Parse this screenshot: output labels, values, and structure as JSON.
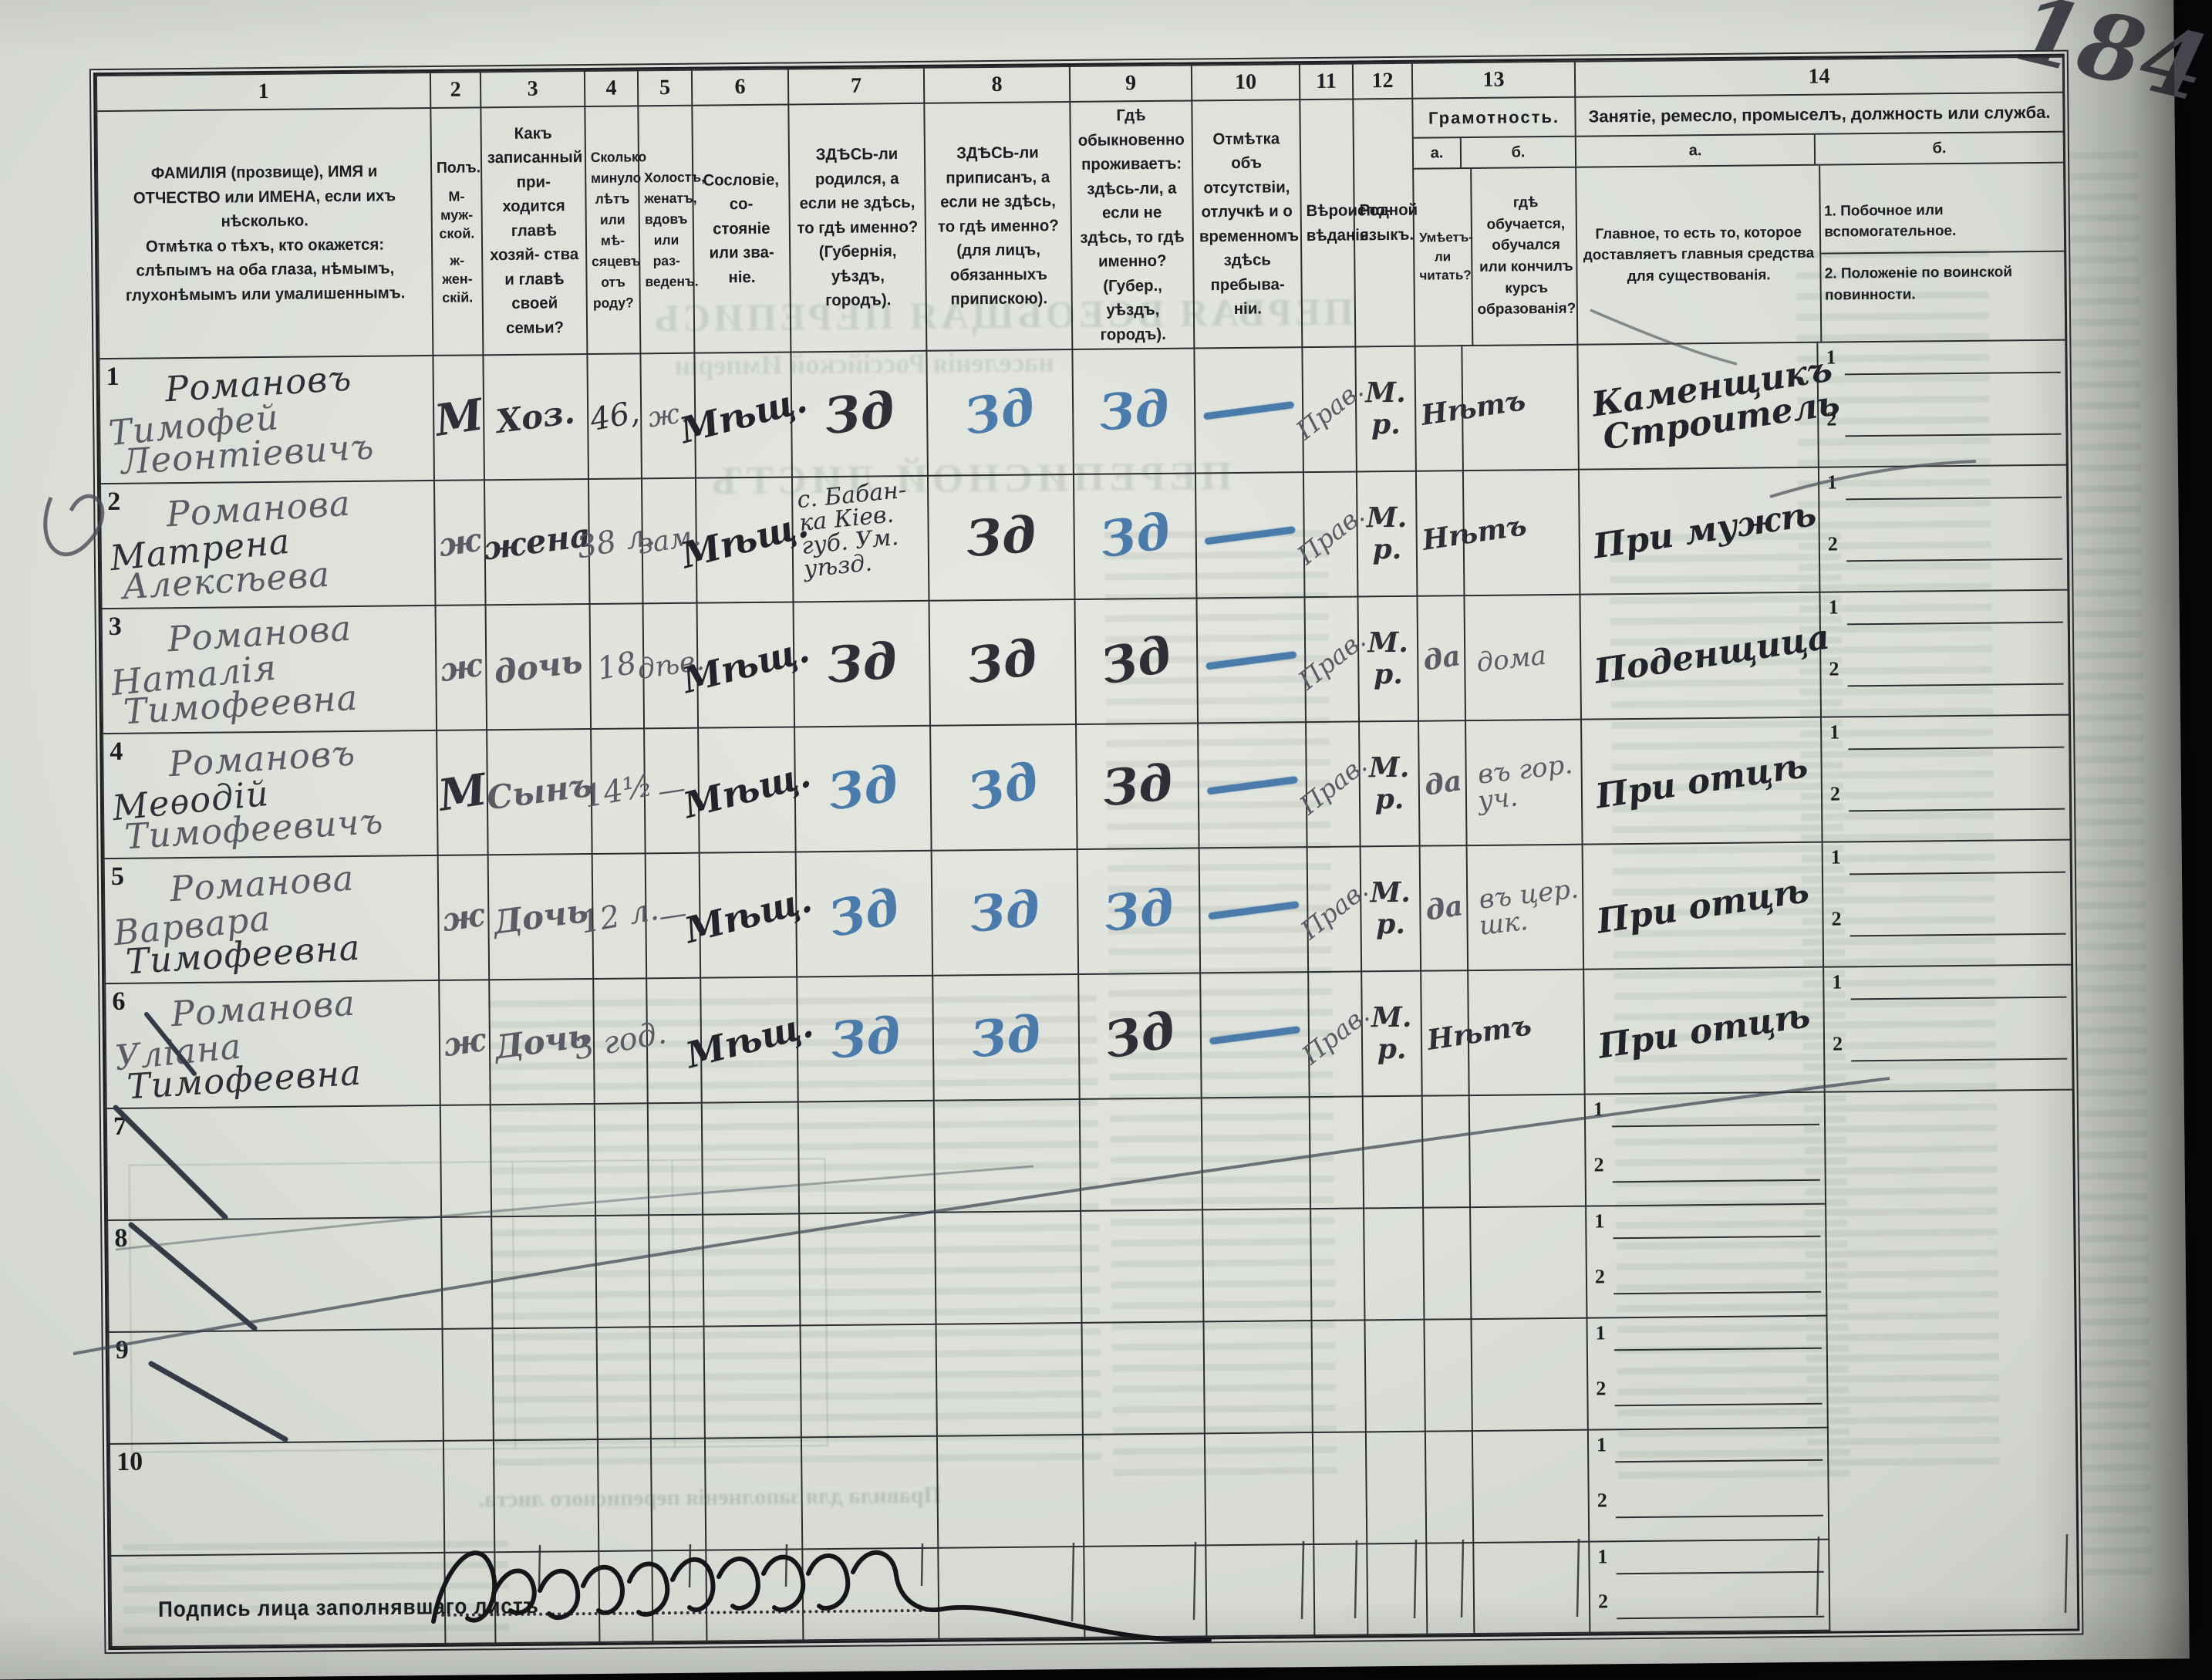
{
  "page_number": "184",
  "columns": {
    "c1": {
      "num": "1",
      "line1": "ФАМИЛІЯ (прозвище), ИМЯ и ОТЧЕСТВО или ИМЕНА, если ихъ нѣсколько.",
      "line2": "Отмѣтка о тѣхъ, кто окажется: слѣпымъ на оба глаза, нѣмымъ, глухонѣмымъ или умалишеннымъ."
    },
    "c2": {
      "num": "2",
      "l1": "Полъ.",
      "l2": "М-муж-ской.",
      "l3": "ж-жен-скій."
    },
    "c3": {
      "num": "3",
      "title": "Какъ записанный при- ходится главѣ хозяй- ства и главѣ своей семьи?"
    },
    "c4": {
      "num": "4",
      "title": "Сколько минуло лѣтъ или мѣ- сяцевъ отъ роду?"
    },
    "c5": {
      "num": "5",
      "title": "Холостъ, женатъ, вдовъ или раз- веденъ."
    },
    "c6": {
      "num": "6",
      "title": "Сословіе, со- стояніе или зва- ніе."
    },
    "c7": {
      "num": "7",
      "title": "ЗДѢСЬ-ли родился, а если не здѣсь, то гдѣ именно? (Губернія, уѣздъ, городъ)."
    },
    "c8": {
      "num": "8",
      "title": "ЗДѢСЬ-ли приписанъ, а если не здѣсь, то гдѣ именно? (для лицъ, обязанныхъ припискою)."
    },
    "c9": {
      "num": "9",
      "title": "Гдѣ обыкновенно проживаетъ: здѣсь-ли, а если не здѣсь, то гдѣ именно? (Губер., уѣздъ, городъ)."
    },
    "c10": {
      "num": "10",
      "title": "Отмѣтка объ отсутствіи, отлучкѣ и о временномъ здѣсь пребыва- ніи."
    },
    "c11": {
      "num": "11",
      "title": "Вѣроиспо- вѣданіе."
    },
    "c12": {
      "num": "12",
      "title": "Родной языкъ."
    },
    "c13": {
      "num": "13",
      "title": "Грамотность.",
      "a_label": "а.",
      "b_label": "б.",
      "a_text": "Умѣетъ- ли читать?",
      "b_text": "гдѣ обучается, обучался или кончилъ курсъ образованія?"
    },
    "c14": {
      "num": "14",
      "title": "Занятіе, ремесло, промыселъ, должность или служба.",
      "a_label": "а.",
      "b_label": "б.",
      "a_text": "Главное, то есть то, которое доставляетъ главныя средства для существованія.",
      "b_item1": "1. Побочное или вспомогательное.",
      "b_item2": "2. Положеніе по воинской повинности."
    }
  },
  "row_sub_labels": [
    "1",
    "2"
  ],
  "rows": [
    {
      "num": "1",
      "name": [
        "Романовъ",
        "Тимофей",
        "Леонтіевичъ"
      ],
      "name_colors": [
        "ink",
        "pencil",
        "pencil"
      ],
      "sex": "М",
      "sex_color": "ink",
      "relation": "Хоз.",
      "relation_color": "ink",
      "age": "46,",
      "age_color": "ink",
      "marital": "ж.",
      "estate": "Мѣщ.",
      "born": "Зд",
      "registered": "Зд",
      "resides": "Зд",
      "absence": "—",
      "religion": "Прав.",
      "language": "М. р.",
      "literacy": "Нѣтъ",
      "literacy_color": "ink",
      "education": [],
      "occupation": [
        "Каменщикъ",
        "Строитель"
      ],
      "blue": [
        "registered",
        "resides",
        "absence"
      ]
    },
    {
      "num": "2",
      "name": [
        "Романова",
        "Матрена",
        "Алексѣева"
      ],
      "name_colors": [
        "pencil",
        "ink",
        "pencil"
      ],
      "sex": "ж",
      "sex_color": "pencil",
      "relation": "жена",
      "relation_color": "ink",
      "age": "38 л.",
      "age_color": "pencil",
      "marital": "зам.",
      "estate": "Мѣщ.",
      "born": [
        "с. Бабан-",
        "ка Кіев.",
        "губ. Ум.",
        "уѣзд."
      ],
      "registered": "Зд",
      "resides": "Зд",
      "absence": "—",
      "religion": "Прав.",
      "language": "М. р.",
      "literacy": "Нѣтъ",
      "literacy_color": "ink",
      "education": [],
      "occupation": [
        "При мужѣ"
      ],
      "blue": [
        "resides",
        "absence"
      ]
    },
    {
      "num": "3",
      "name": [
        "Романова",
        "Наталія",
        "Тимофеевна"
      ],
      "name_colors": [
        "pencil",
        "pencil",
        "pencil"
      ],
      "sex": "ж",
      "sex_color": "pencil",
      "relation": "дочь",
      "relation_color": "pencil",
      "age": "18",
      "age_color": "pencil",
      "marital": "дѣв.",
      "estate": "Мѣщ.",
      "born": "Зд",
      "registered": "Зд",
      "resides": "Зд",
      "absence": "—",
      "religion": "Прав.",
      "language": "М. р.",
      "literacy": "да",
      "literacy_color": "pencil",
      "education": [
        "дома"
      ],
      "occupation": [
        "Поденщица"
      ],
      "blue": [
        "absence"
      ]
    },
    {
      "num": "4",
      "name": [
        "Романовъ",
        "Меѳодій",
        "Тимофеевичъ"
      ],
      "name_colors": [
        "pencil",
        "ink",
        "pencil"
      ],
      "sex": "М",
      "sex_color": "ink",
      "relation": "Сынъ",
      "relation_color": "pencil",
      "age": "14½",
      "age_color": "pencil",
      "marital": "—",
      "estate": "Мѣщ.",
      "born": "Зд",
      "registered": "Зд",
      "resides": "Зд",
      "absence": "—",
      "religion": "Прав.",
      "language": "М. р.",
      "literacy": "да",
      "literacy_color": "pencil",
      "education": [
        "въ гор.",
        "уч."
      ],
      "occupation": [
        "При отцѣ"
      ],
      "blue": [
        "born",
        "registered",
        "absence"
      ]
    },
    {
      "num": "5",
      "name": [
        "Романова",
        "Варвара",
        "Тимофеевна"
      ],
      "name_colors": [
        "pencil",
        "pencil",
        "ink"
      ],
      "sex": "ж",
      "sex_color": "pencil",
      "relation": "Дочь",
      "relation_color": "pencil",
      "age": "12 л.",
      "age_color": "pencil",
      "marital": "—",
      "estate": "Мѣщ.",
      "born": "Зд",
      "registered": "Зд",
      "resides": "Зд",
      "absence": "—",
      "religion": "Прав.",
      "language": "М. р.",
      "literacy": "да",
      "literacy_color": "pencil",
      "education": [
        "въ цер.",
        "шк."
      ],
      "occupation": [
        "При отцѣ"
      ],
      "blue": [
        "born",
        "registered",
        "resides",
        "absence"
      ]
    },
    {
      "num": "6",
      "name": [
        "Романова",
        "Уліана",
        "Тимофеевна"
      ],
      "name_colors": [
        "pencil",
        "pencil",
        "ink"
      ],
      "sex": "ж",
      "sex_color": "pencil",
      "relation": "Дочь",
      "relation_color": "pencil",
      "age": "3 год.",
      "age_color": "pencil",
      "marital": "",
      "estate": "Мѣщ.",
      "born": "Зд",
      "registered": "Зд",
      "resides": "Зд",
      "absence": "—",
      "religion": "Прав.",
      "language": "М. р.",
      "literacy": "Нѣтъ",
      "literacy_color": "ink",
      "education": [],
      "occupation": [
        "При отцѣ"
      ],
      "blue": [
        "born",
        "registered",
        "absence"
      ]
    }
  ],
  "empty_row_numbers": [
    "7",
    "8",
    "9",
    "10"
  ],
  "footer": {
    "signature_label": "Подпись лица заполнявшаго листъ"
  },
  "bleedthrough": {
    "t1": "ПЕРВАЯ ВСЕОБЩАЯ ПЕРЕПИСЬ",
    "t2": "населенія Россійской Имперіи",
    "t3": "ПЕРЕПИСНОЙ ЛИСТЪ",
    "t4": "Правила для заполненія переписного листа."
  },
  "colors": {
    "ink": "#2e2f37",
    "pencil": "#5a5b64",
    "blue_pencil": "#4a7bab",
    "paper": "#dde1da",
    "rule": "#2b2c30"
  }
}
